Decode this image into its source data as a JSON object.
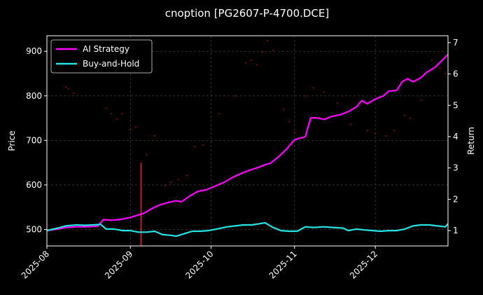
{
  "chart_data": {
    "type": "line",
    "title": "cnoption [PG2607-P-4700.DCE]",
    "xlabel": "",
    "ylabel_left": "Price",
    "ylabel_right": "Return",
    "x_ticks": [
      "2025-08",
      "2025-09",
      "2025-10",
      "2025-11",
      "2025-12"
    ],
    "x_range": [
      "2025-08-01",
      "2025-12-28"
    ],
    "ylim_left": [
      463,
      935
    ],
    "yticks_left": [
      500,
      600,
      700,
      800,
      900
    ],
    "ylim_right": [
      0.51,
      7.22
    ],
    "yticks_right": [
      1,
      2,
      3,
      4,
      5,
      6,
      7
    ],
    "grid": true,
    "legend_position": "top-left",
    "marker_date": "2025-09-05",
    "marker_range": [
      463,
      650
    ],
    "colors": {
      "background": "#000000",
      "ai_strategy": "#ff00ff",
      "buy_and_hold": "#22e4e4",
      "marker": "#ff1a1a",
      "price_dots": "#b30000",
      "grid": "#3a3a3a",
      "axes": "#ffffff"
    },
    "series": [
      {
        "name": "AI Strategy",
        "axis": "right",
        "points": [
          [
            "2025-08-01",
            1.0
          ],
          [
            "2025-08-05",
            1.05
          ],
          [
            "2025-08-08",
            1.1
          ],
          [
            "2025-08-12",
            1.12
          ],
          [
            "2025-08-15",
            1.12
          ],
          [
            "2025-08-18",
            1.13
          ],
          [
            "2025-08-20",
            1.15
          ],
          [
            "2025-08-22",
            1.35
          ],
          [
            "2025-08-25",
            1.33
          ],
          [
            "2025-08-28",
            1.35
          ],
          [
            "2025-09-01",
            1.42
          ],
          [
            "2025-09-04",
            1.5
          ],
          [
            "2025-09-06",
            1.55
          ],
          [
            "2025-09-08",
            1.65
          ],
          [
            "2025-09-10",
            1.75
          ],
          [
            "2025-09-12",
            1.82
          ],
          [
            "2025-09-15",
            1.9
          ],
          [
            "2025-09-18",
            1.95
          ],
          [
            "2025-09-20",
            1.92
          ],
          [
            "2025-09-23",
            2.1
          ],
          [
            "2025-09-26",
            2.25
          ],
          [
            "2025-09-29",
            2.3
          ],
          [
            "2025-10-02",
            2.4
          ],
          [
            "2025-10-06",
            2.55
          ],
          [
            "2025-10-09",
            2.7
          ],
          [
            "2025-10-12",
            2.82
          ],
          [
            "2025-10-15",
            2.92
          ],
          [
            "2025-10-18",
            3.0
          ],
          [
            "2025-10-21",
            3.1
          ],
          [
            "2025-10-23",
            3.15
          ],
          [
            "2025-10-26",
            3.35
          ],
          [
            "2025-10-29",
            3.6
          ],
          [
            "2025-11-01",
            3.9
          ],
          [
            "2025-11-03",
            3.95
          ],
          [
            "2025-11-05",
            4.0
          ],
          [
            "2025-11-07",
            4.6
          ],
          [
            "2025-11-09",
            4.6
          ],
          [
            "2025-11-12",
            4.55
          ],
          [
            "2025-11-15",
            4.65
          ],
          [
            "2025-11-18",
            4.7
          ],
          [
            "2025-11-21",
            4.8
          ],
          [
            "2025-11-24",
            4.95
          ],
          [
            "2025-11-26",
            5.15
          ],
          [
            "2025-11-28",
            5.05
          ],
          [
            "2025-12-01",
            5.2
          ],
          [
            "2025-12-04",
            5.3
          ],
          [
            "2025-12-06",
            5.45
          ],
          [
            "2025-12-09",
            5.48
          ],
          [
            "2025-12-11",
            5.75
          ],
          [
            "2025-12-13",
            5.85
          ],
          [
            "2025-12-15",
            5.75
          ],
          [
            "2025-12-18",
            5.88
          ],
          [
            "2025-12-20",
            6.05
          ],
          [
            "2025-12-23",
            6.2
          ],
          [
            "2025-12-26",
            6.45
          ],
          [
            "2025-12-28",
            6.62
          ]
        ]
      },
      {
        "name": "Buy-and-Hold",
        "axis": "right",
        "points": [
          [
            "2025-08-01",
            1.0
          ],
          [
            "2025-08-05",
            1.08
          ],
          [
            "2025-08-08",
            1.15
          ],
          [
            "2025-08-12",
            1.18
          ],
          [
            "2025-08-15",
            1.17
          ],
          [
            "2025-08-18",
            1.18
          ],
          [
            "2025-08-21",
            1.2
          ],
          [
            "2025-08-23",
            1.05
          ],
          [
            "2025-08-26",
            1.05
          ],
          [
            "2025-08-29",
            1.0
          ],
          [
            "2025-09-01",
            1.0
          ],
          [
            "2025-09-04",
            0.95
          ],
          [
            "2025-09-07",
            0.95
          ],
          [
            "2025-09-10",
            0.98
          ],
          [
            "2025-09-13",
            0.87
          ],
          [
            "2025-09-16",
            0.85
          ],
          [
            "2025-09-18",
            0.82
          ],
          [
            "2025-09-21",
            0.9
          ],
          [
            "2025-09-24",
            0.98
          ],
          [
            "2025-09-27",
            0.98
          ],
          [
            "2025-09-30",
            1.0
          ],
          [
            "2025-10-03",
            1.05
          ],
          [
            "2025-10-07",
            1.12
          ],
          [
            "2025-10-10",
            1.15
          ],
          [
            "2025-10-13",
            1.18
          ],
          [
            "2025-10-16",
            1.18
          ],
          [
            "2025-10-19",
            1.22
          ],
          [
            "2025-10-21",
            1.25
          ],
          [
            "2025-10-24",
            1.1
          ],
          [
            "2025-10-27",
            1.0
          ],
          [
            "2025-10-30",
            0.98
          ],
          [
            "2025-11-02",
            0.98
          ],
          [
            "2025-11-05",
            1.12
          ],
          [
            "2025-11-08",
            1.1
          ],
          [
            "2025-11-12",
            1.12
          ],
          [
            "2025-11-15",
            1.1
          ],
          [
            "2025-11-19",
            1.08
          ],
          [
            "2025-11-21",
            1.0
          ],
          [
            "2025-11-24",
            1.05
          ],
          [
            "2025-11-27",
            1.02
          ],
          [
            "2025-11-30",
            1.0
          ],
          [
            "2025-12-03",
            0.98
          ],
          [
            "2025-12-06",
            1.0
          ],
          [
            "2025-12-09",
            1.0
          ],
          [
            "2025-12-12",
            1.05
          ],
          [
            "2025-12-15",
            1.15
          ],
          [
            "2025-12-18",
            1.18
          ],
          [
            "2025-12-21",
            1.18
          ],
          [
            "2025-12-24",
            1.15
          ],
          [
            "2025-12-27",
            1.12
          ],
          [
            "2025-12-28",
            1.22
          ]
        ]
      },
      {
        "axis": "left",
        "style": "dots",
        "points": [
          [
            "2025-08-08",
            820
          ],
          [
            "2025-08-09",
            816
          ],
          [
            "2025-08-11",
            806
          ],
          [
            "2025-08-23",
            772
          ],
          [
            "2025-08-25",
            760
          ],
          [
            "2025-08-27",
            748
          ],
          [
            "2025-08-29",
            760
          ],
          [
            "2025-09-01",
            724
          ],
          [
            "2025-09-03",
            730
          ],
          [
            "2025-09-07",
            668
          ],
          [
            "2025-09-10",
            710
          ],
          [
            "2025-09-14",
            598
          ],
          [
            "2025-09-16",
            606
          ],
          [
            "2025-09-19",
            612
          ],
          [
            "2025-09-22",
            622
          ],
          [
            "2025-09-25",
            686
          ],
          [
            "2025-09-28",
            690
          ],
          [
            "2025-10-04",
            760
          ],
          [
            "2025-10-10",
            800
          ],
          [
            "2025-10-14",
            874
          ],
          [
            "2025-10-16",
            880
          ],
          [
            "2025-10-18",
            870
          ],
          [
            "2025-10-20",
            898
          ],
          [
            "2025-10-22",
            924
          ],
          [
            "2025-10-24",
            902
          ],
          [
            "2025-10-28",
            770
          ],
          [
            "2025-10-30",
            742
          ],
          [
            "2025-11-01",
            718
          ],
          [
            "2025-11-05",
            800
          ],
          [
            "2025-11-08",
            818
          ],
          [
            "2025-11-12",
            808
          ],
          [
            "2025-11-17",
            784
          ],
          [
            "2025-11-22",
            736
          ],
          [
            "2025-11-28",
            722
          ],
          [
            "2025-12-01",
            716
          ],
          [
            "2025-12-05",
            710
          ],
          [
            "2025-12-08",
            722
          ],
          [
            "2025-12-12",
            756
          ],
          [
            "2025-12-14",
            750
          ],
          [
            "2025-12-18",
            790
          ],
          [
            "2025-12-22",
            880
          ],
          [
            "2025-12-25",
            862
          ],
          [
            "2025-12-27",
            850
          ]
        ]
      }
    ]
  }
}
